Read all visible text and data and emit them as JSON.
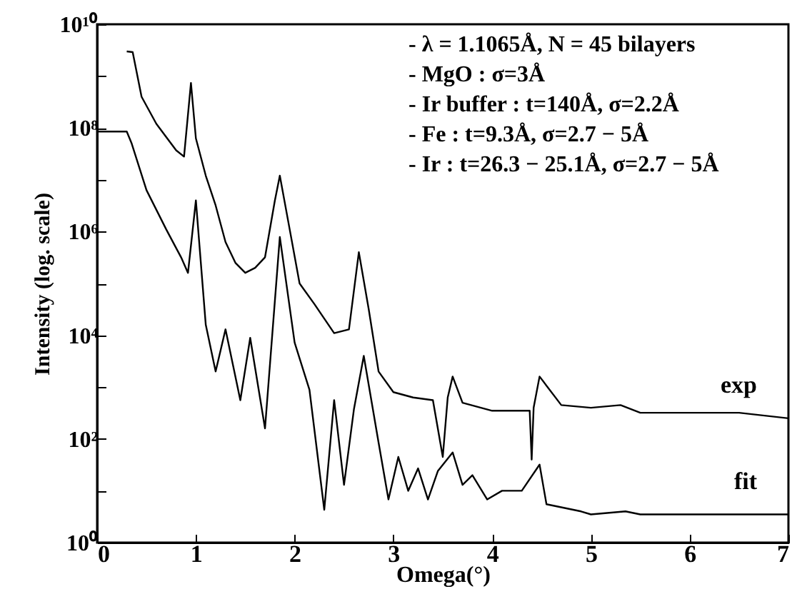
{
  "chart_data": {
    "type": "line",
    "xlabel": "Omega(°)",
    "ylabel": "Intensity (log. scale)",
    "log": "y",
    "grid": false,
    "marker": "none",
    "line_style": "solid",
    "xlim": [
      0,
      7
    ],
    "xticks": [
      0,
      1,
      2,
      3,
      4,
      5,
      6,
      7
    ],
    "ylim": [
      1,
      10000000000.0
    ],
    "yticks": [
      {
        "value": 1,
        "label": "10⁰"
      },
      {
        "value": 10,
        "label": null
      },
      {
        "value": 100,
        "label": "10²"
      },
      {
        "value": 1000,
        "label": null
      },
      {
        "value": 10000,
        "label": "10⁴"
      },
      {
        "value": 100000,
        "label": null
      },
      {
        "value": 1000000,
        "label": "10⁶"
      },
      {
        "value": 10000000,
        "label": null
      },
      {
        "value": 100000000,
        "label": "10⁸"
      },
      {
        "value": 1000000000,
        "label": null
      },
      {
        "value": 10000000000,
        "label": "10¹⁰"
      }
    ],
    "annotations": [
      "- λ = 1.1065Å, N = 45 bilayers",
      "- MgO : σ=3Å",
      "- Ir buffer : t=140Å, σ=2.2Å",
      "- Fe : t=9.3Å, σ=2.7 − 5Å",
      "- Ir : t=26.3 − 25.1Å, σ=2.7 − 5Å"
    ],
    "series": [
      {
        "name": "exp",
        "color": "#000000",
        "x": [
          0.3,
          0.36,
          0.45,
          0.6,
          0.8,
          0.88,
          0.95,
          1.0,
          1.1,
          1.2,
          1.3,
          1.4,
          1.5,
          1.6,
          1.7,
          1.8,
          1.85,
          1.95,
          2.05,
          2.2,
          2.4,
          2.55,
          2.65,
          2.75,
          2.85,
          3.0,
          3.2,
          3.4,
          3.5,
          3.55,
          3.6,
          3.7,
          4.0,
          4.38,
          4.4,
          4.42,
          4.48,
          4.7,
          5.0,
          5.3,
          5.5,
          6.0,
          6.5,
          7.0
        ],
        "values": [
          3000000000.0,
          2900000000.0,
          400000000.0,
          120000000.0,
          37000000.0,
          28000000.0,
          740000000.0,
          63000000.0,
          12000000.0,
          3200000.0,
          630000.0,
          250000.0,
          160000.0,
          200000.0,
          320000.0,
          4000000.0,
          12000000.0,
          1100000.0,
          100000.0,
          40000.0,
          11000.0,
          13000.0,
          400000.0,
          32000.0,
          2000.0,
          800,
          630,
          560,
          45,
          630,
          1600,
          500,
          350,
          350,
          40,
          400,
          1600,
          450,
          400,
          450,
          320,
          320,
          320,
          250
        ]
      },
      {
        "name": "fit",
        "color": "#000000",
        "x": [
          0,
          0.3,
          0.35,
          0.5,
          0.7,
          0.85,
          0.92,
          1.0,
          1.1,
          1.2,
          1.3,
          1.45,
          1.55,
          1.7,
          1.85,
          2.0,
          2.15,
          2.3,
          2.4,
          2.5,
          2.6,
          2.7,
          2.85,
          2.95,
          3.05,
          3.15,
          3.25,
          3.35,
          3.45,
          3.6,
          3.7,
          3.8,
          3.95,
          4.1,
          4.3,
          4.48,
          4.55,
          4.9,
          5.0,
          5.35,
          5.5,
          7.0
        ],
        "values": [
          85000000.0,
          85000000.0,
          50000000.0,
          6300000.0,
          1100000.0,
          320000.0,
          160000.0,
          4000000.0,
          16000.0,
          2000.0,
          13000.0,
          560,
          8900.0,
          160,
          790000.0,
          7200.0,
          890,
          4.3,
          560,
          13,
          370,
          4000.0,
          85,
          6.8,
          45,
          10,
          27,
          6.8,
          24,
          55,
          13,
          20,
          6.8,
          10,
          10,
          32,
          5.5,
          4.0,
          3.5,
          4.0,
          3.5,
          3.5
        ]
      }
    ]
  }
}
